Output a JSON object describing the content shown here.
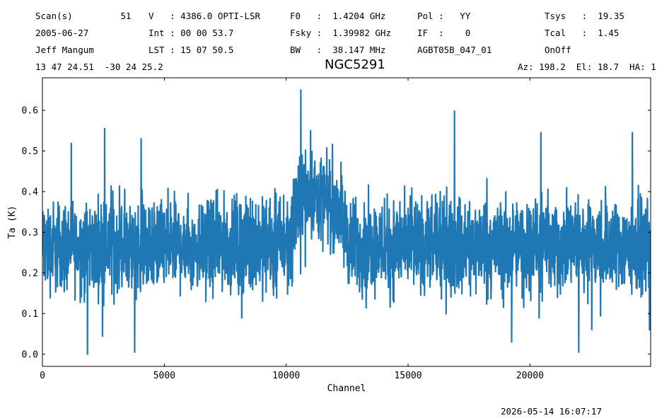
{
  "header": {
    "rows": [
      [
        "Scan(s)         51",
        "V   : 4386.0 OPTI-LSR",
        "F0   :  1.4204 GHz",
        "Pol :   YY",
        "Tsys   :  19.35"
      ],
      [
        "2005-06-27",
        "Int : 00 00 53.7",
        "Fsky :  1.39982 GHz",
        "IF  :    0",
        "Tcal   :  1.45"
      ],
      [
        "Jeff Mangum",
        "LST : 15 07 50.5",
        "BW   :  38.147 MHz",
        "AGBT05B_047_01",
        "OnOff"
      ]
    ],
    "coords": "13 47 24.51  -30 24 25.2",
    "azel": "Az: 198.2  El: 18.7  HA: 1"
  },
  "timestamp": "2026-05-14 16:07:17",
  "chart_data": {
    "type": "line",
    "title": "NGC5291",
    "xlabel": "Channel",
    "ylabel": "Ta (K)",
    "xlim": [
      0,
      24950
    ],
    "ylim": [
      -0.03,
      0.68
    ],
    "xticks": [
      0,
      5000,
      10000,
      15000,
      20000
    ],
    "yticks": [
      0.0,
      0.1,
      0.2,
      0.3,
      0.4,
      0.5,
      0.6
    ],
    "ytick_labels": [
      "0.0",
      "0.1",
      "0.2",
      "0.3",
      "0.4",
      "0.5",
      "0.6"
    ],
    "line_color": "#1f77b4",
    "grid": false,
    "series": [
      {
        "x_start": 0,
        "x_end": 24950,
        "n_channels": 24950,
        "baseline_profile": [
          [
            0,
            0.265
          ],
          [
            10000,
            0.27
          ],
          [
            10300,
            0.3
          ],
          [
            10500,
            0.36
          ],
          [
            10700,
            0.4
          ],
          [
            11000,
            0.39
          ],
          [
            11500,
            0.375
          ],
          [
            12000,
            0.37
          ],
          [
            12300,
            0.33
          ],
          [
            12600,
            0.27
          ],
          [
            13000,
            0.268
          ],
          [
            18000,
            0.265
          ],
          [
            24950,
            0.268
          ]
        ],
        "noise_envelope_k": [
          0.09,
          0.48
        ],
        "peaks": [
          {
            "x": 10600,
            "y": 0.65
          },
          {
            "x": 2550,
            "y": 0.555
          },
          {
            "x": 16900,
            "y": 0.598
          },
          {
            "x": 11000,
            "y": 0.55
          },
          {
            "x": 4050,
            "y": 0.53
          },
          {
            "x": 20450,
            "y": 0.545
          },
          {
            "x": 24200,
            "y": 0.545
          }
        ],
        "troughs": [
          {
            "x": 1850,
            "y": 0.0
          },
          {
            "x": 3780,
            "y": 0.005
          },
          {
            "x": 22000,
            "y": 0.005
          },
          {
            "x": 19250,
            "y": 0.03
          },
          {
            "x": 24900,
            "y": 0.06
          }
        ]
      }
    ]
  }
}
